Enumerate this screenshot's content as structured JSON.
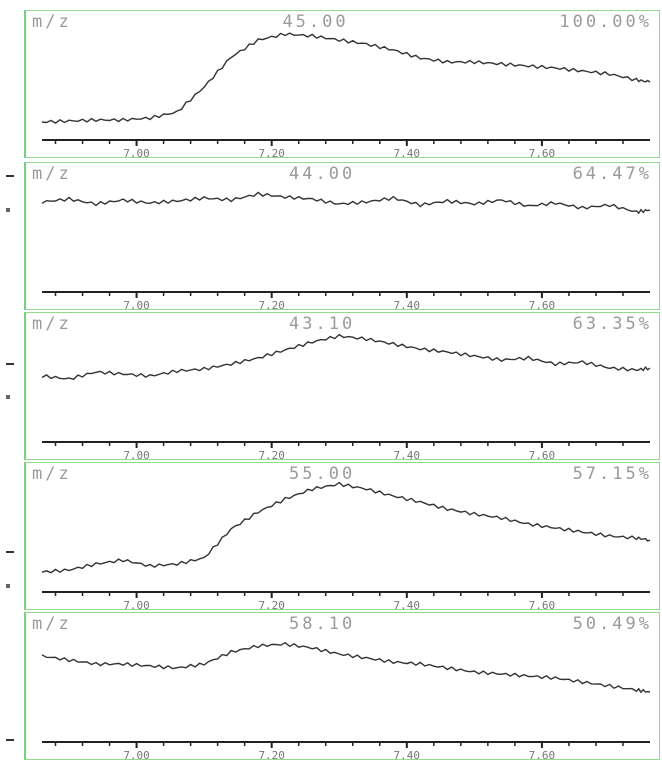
{
  "chart_data": [
    {
      "type": "line",
      "title": "m/z",
      "mass": "45.00",
      "intensity": "100.00%",
      "x_ticks": [
        "7.00",
        "7.20",
        "7.40",
        "7.60"
      ],
      "xlim": [
        6.86,
        7.76
      ],
      "ylim": [
        0,
        1
      ],
      "x": [
        6.86,
        6.9,
        6.94,
        6.98,
        7.02,
        7.06,
        7.1,
        7.14,
        7.18,
        7.22,
        7.26,
        7.3,
        7.34,
        7.38,
        7.42,
        7.46,
        7.5,
        7.54,
        7.58,
        7.62,
        7.66,
        7.7,
        7.74,
        7.76
      ],
      "y": [
        0.1,
        0.11,
        0.12,
        0.12,
        0.14,
        0.2,
        0.45,
        0.75,
        0.92,
        0.98,
        0.96,
        0.92,
        0.88,
        0.82,
        0.74,
        0.7,
        0.7,
        0.68,
        0.66,
        0.64,
        0.61,
        0.58,
        0.52,
        0.5
      ]
    },
    {
      "type": "line",
      "title": "m/z",
      "mass": "44.00",
      "intensity": "64.47%",
      "x_ticks": [
        "7.00",
        "7.20",
        "7.40",
        "7.60"
      ],
      "xlim": [
        6.86,
        7.76
      ],
      "ylim": [
        0,
        1
      ],
      "x": [
        6.86,
        6.9,
        6.94,
        6.98,
        7.02,
        7.06,
        7.1,
        7.14,
        7.18,
        7.22,
        7.26,
        7.3,
        7.34,
        7.38,
        7.42,
        7.46,
        7.5,
        7.54,
        7.58,
        7.62,
        7.66,
        7.7,
        7.74,
        7.76
      ],
      "y": [
        0.82,
        0.85,
        0.8,
        0.84,
        0.81,
        0.83,
        0.86,
        0.84,
        0.9,
        0.87,
        0.85,
        0.8,
        0.82,
        0.86,
        0.79,
        0.83,
        0.8,
        0.84,
        0.78,
        0.81,
        0.76,
        0.79,
        0.72,
        0.74
      ]
    },
    {
      "type": "line",
      "title": "m/z",
      "mass": "43.10",
      "intensity": "63.35%",
      "x_ticks": [
        "7.00",
        "7.20",
        "7.40",
        "7.60"
      ],
      "xlim": [
        6.86,
        7.76
      ],
      "ylim": [
        0,
        1
      ],
      "x": [
        6.86,
        6.9,
        6.94,
        6.98,
        7.02,
        7.06,
        7.1,
        7.14,
        7.18,
        7.22,
        7.26,
        7.3,
        7.34,
        7.38,
        7.42,
        7.46,
        7.5,
        7.54,
        7.58,
        7.62,
        7.66,
        7.7,
        7.74,
        7.76
      ],
      "y": [
        0.58,
        0.55,
        0.62,
        0.6,
        0.58,
        0.63,
        0.65,
        0.7,
        0.76,
        0.84,
        0.92,
        0.98,
        0.95,
        0.9,
        0.85,
        0.82,
        0.78,
        0.74,
        0.76,
        0.7,
        0.72,
        0.66,
        0.64,
        0.66
      ]
    },
    {
      "type": "line",
      "title": "m/z",
      "mass": "55.00",
      "intensity": "57.15%",
      "x_ticks": [
        "7.00",
        "7.20",
        "7.40",
        "7.60"
      ],
      "xlim": [
        6.86,
        7.76
      ],
      "ylim": [
        0,
        1
      ],
      "x": [
        6.86,
        6.9,
        6.94,
        6.98,
        7.02,
        7.06,
        7.1,
        7.14,
        7.18,
        7.22,
        7.26,
        7.3,
        7.34,
        7.38,
        7.42,
        7.46,
        7.5,
        7.54,
        7.58,
        7.62,
        7.66,
        7.7,
        7.74,
        7.76
      ],
      "y": [
        0.12,
        0.14,
        0.2,
        0.24,
        0.18,
        0.2,
        0.26,
        0.55,
        0.72,
        0.85,
        0.95,
        1.0,
        0.95,
        0.88,
        0.82,
        0.75,
        0.7,
        0.66,
        0.6,
        0.56,
        0.52,
        0.48,
        0.46,
        0.44
      ]
    },
    {
      "type": "line",
      "title": "m/z",
      "mass": "58.10",
      "intensity": "50.49%",
      "x_ticks": [
        "7.00",
        "7.20",
        "7.40",
        "7.60"
      ],
      "xlim": [
        6.86,
        7.76
      ],
      "ylim": [
        0,
        1
      ],
      "x": [
        6.86,
        6.9,
        6.94,
        6.98,
        7.02,
        7.06,
        7.1,
        7.14,
        7.18,
        7.22,
        7.26,
        7.3,
        7.34,
        7.38,
        7.42,
        7.46,
        7.5,
        7.54,
        7.58,
        7.62,
        7.66,
        7.7,
        7.74,
        7.76
      ],
      "y": [
        0.78,
        0.74,
        0.7,
        0.7,
        0.68,
        0.66,
        0.7,
        0.82,
        0.88,
        0.9,
        0.86,
        0.8,
        0.76,
        0.72,
        0.7,
        0.66,
        0.62,
        0.6,
        0.58,
        0.56,
        0.52,
        0.48,
        0.44,
        0.42
      ]
    }
  ],
  "colors": {
    "frame": "#8fdc8f",
    "trace": "#333333",
    "axis": "#222222",
    "header_text": "#9a9a9a"
  }
}
